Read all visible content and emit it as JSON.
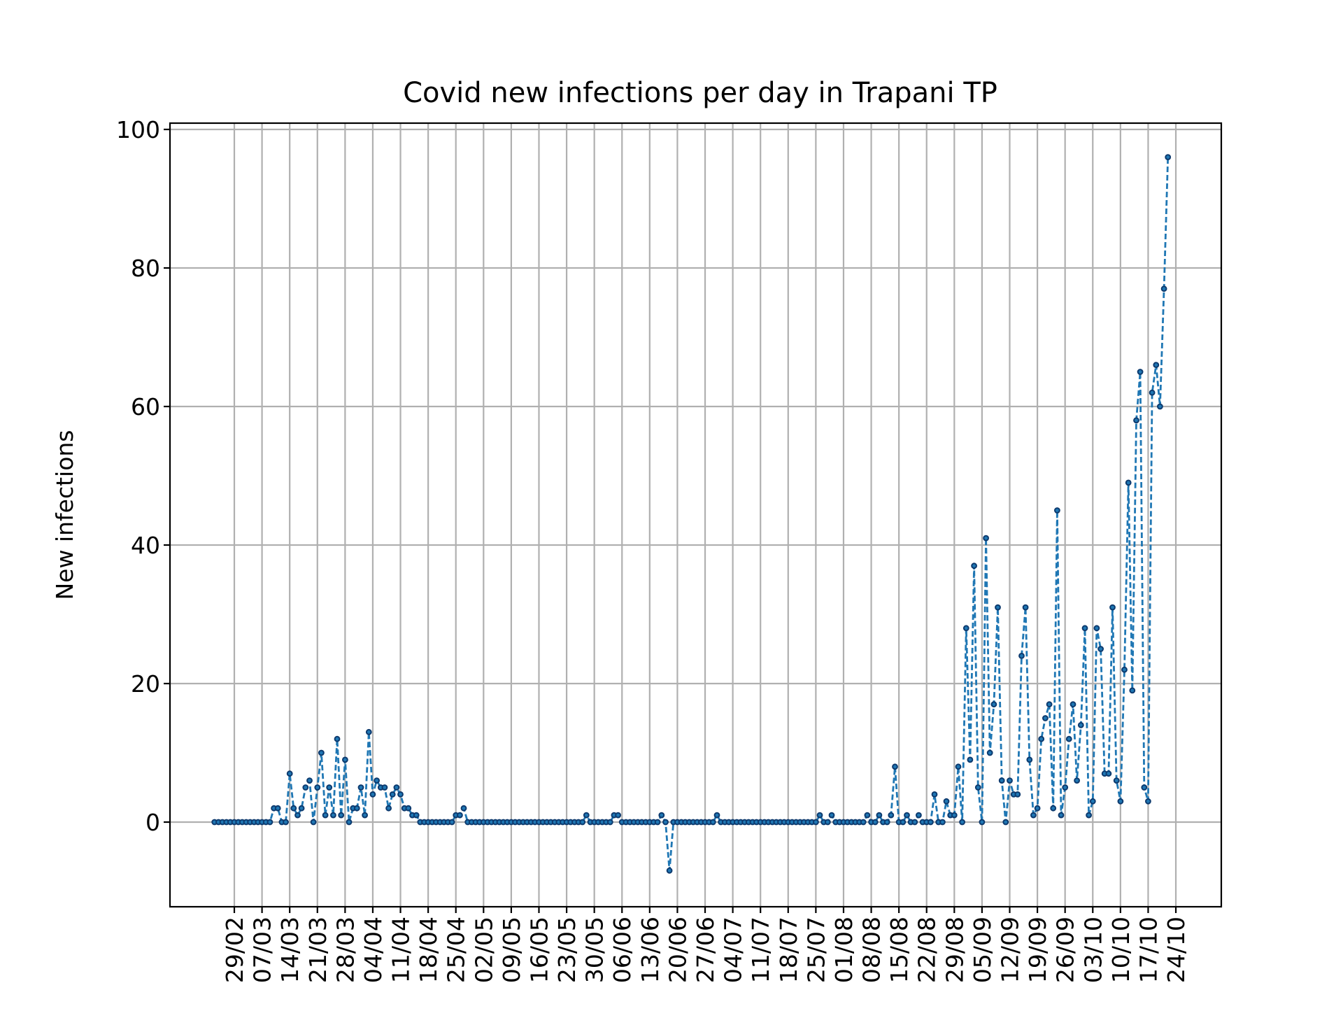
{
  "chart_data": {
    "type": "line",
    "title": "Covid new infections per day in Trapani TP",
    "xlabel": "",
    "ylabel": "New infections",
    "x_start": "24/02",
    "x_tick_labels": [
      "29/02",
      "07/03",
      "14/03",
      "21/03",
      "28/03",
      "04/04",
      "11/04",
      "18/04",
      "25/04",
      "02/05",
      "09/05",
      "16/05",
      "23/05",
      "30/05",
      "06/06",
      "13/06",
      "20/06",
      "27/06",
      "04/07",
      "11/07",
      "18/07",
      "25/07",
      "01/08",
      "08/08",
      "15/08",
      "22/08",
      "29/08",
      "05/09",
      "12/09",
      "19/09",
      "26/09",
      "03/10",
      "10/10",
      "17/10",
      "24/10"
    ],
    "ylim": [
      -12,
      101
    ],
    "y_ticks": [
      0,
      20,
      40,
      60,
      80,
      100
    ],
    "y_tick_labels": [
      "0",
      "20",
      "40",
      "60",
      "80",
      "100"
    ],
    "grid": true,
    "colors": {
      "line": "#1f77b4",
      "marker": "#1f77b4"
    },
    "series": [
      {
        "values": [
          0,
          0,
          0,
          0,
          0,
          0,
          0,
          0,
          0,
          0,
          0,
          0,
          0,
          0,
          0,
          2,
          2,
          0,
          0,
          7,
          2,
          1,
          2,
          5,
          6,
          0,
          5,
          10,
          1,
          5,
          1,
          12,
          1,
          9,
          0,
          2,
          2,
          5,
          1,
          13,
          4,
          6,
          5,
          5,
          2,
          4,
          5,
          4,
          2,
          2,
          1,
          1,
          0,
          0,
          0,
          0,
          0,
          0,
          0,
          0,
          0,
          1,
          1,
          2,
          0,
          0,
          0,
          0,
          0,
          0,
          0,
          0,
          0,
          0,
          0,
          0,
          0,
          0,
          0,
          0,
          0,
          0,
          0,
          0,
          0,
          0,
          0,
          0,
          0,
          0,
          0,
          0,
          0,
          0,
          1,
          0,
          0,
          0,
          0,
          0,
          0,
          1,
          1,
          0,
          0,
          0,
          0,
          0,
          0,
          0,
          0,
          0,
          0,
          1,
          0,
          -7,
          0,
          0,
          0,
          0,
          0,
          0,
          0,
          0,
          0,
          0,
          0,
          1,
          0,
          0,
          0,
          0,
          0,
          0,
          0,
          0,
          0,
          0,
          0,
          0,
          0,
          0,
          0,
          0,
          0,
          0,
          0,
          0,
          0,
          0,
          0,
          0,
          0,
          1,
          0,
          0,
          1,
          0,
          0,
          0,
          0,
          0,
          0,
          0,
          0,
          1,
          0,
          0,
          1,
          0,
          0,
          1,
          8,
          0,
          0,
          1,
          0,
          0,
          1,
          0,
          0,
          0,
          4,
          0,
          0,
          3,
          1,
          1,
          8,
          0,
          28,
          9,
          37,
          5,
          0,
          41,
          10,
          17,
          31,
          6,
          0,
          6,
          4,
          4,
          24,
          31,
          9,
          1,
          2,
          12,
          15,
          17,
          2,
          45,
          1,
          5,
          12,
          17,
          6,
          14,
          28,
          1,
          3,
          28,
          25,
          7,
          7,
          31,
          6,
          3,
          22,
          49,
          19,
          58,
          65,
          5,
          3,
          62,
          66,
          60,
          77,
          96
        ]
      }
    ]
  }
}
